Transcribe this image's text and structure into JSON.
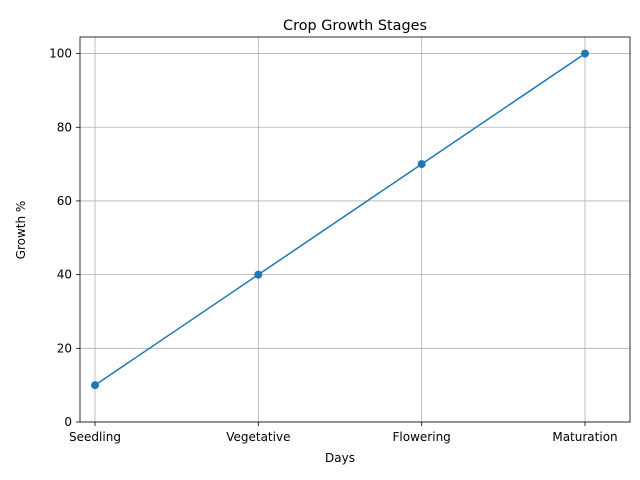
{
  "chart_data": {
    "type": "line",
    "title": "Crop Growth Stages",
    "xlabel": "Days",
    "ylabel": "Growth %",
    "categories": [
      "Seedling",
      "Vegetative",
      "Flowering",
      "Maturation"
    ],
    "series": [
      {
        "values": [
          10,
          40,
          70,
          100
        ],
        "color": "#1f77b4",
        "marker": "circle"
      }
    ],
    "ylim": [
      0,
      104.5
    ],
    "yticks": [
      0,
      20,
      40,
      60,
      80,
      100
    ],
    "grid": true
  }
}
